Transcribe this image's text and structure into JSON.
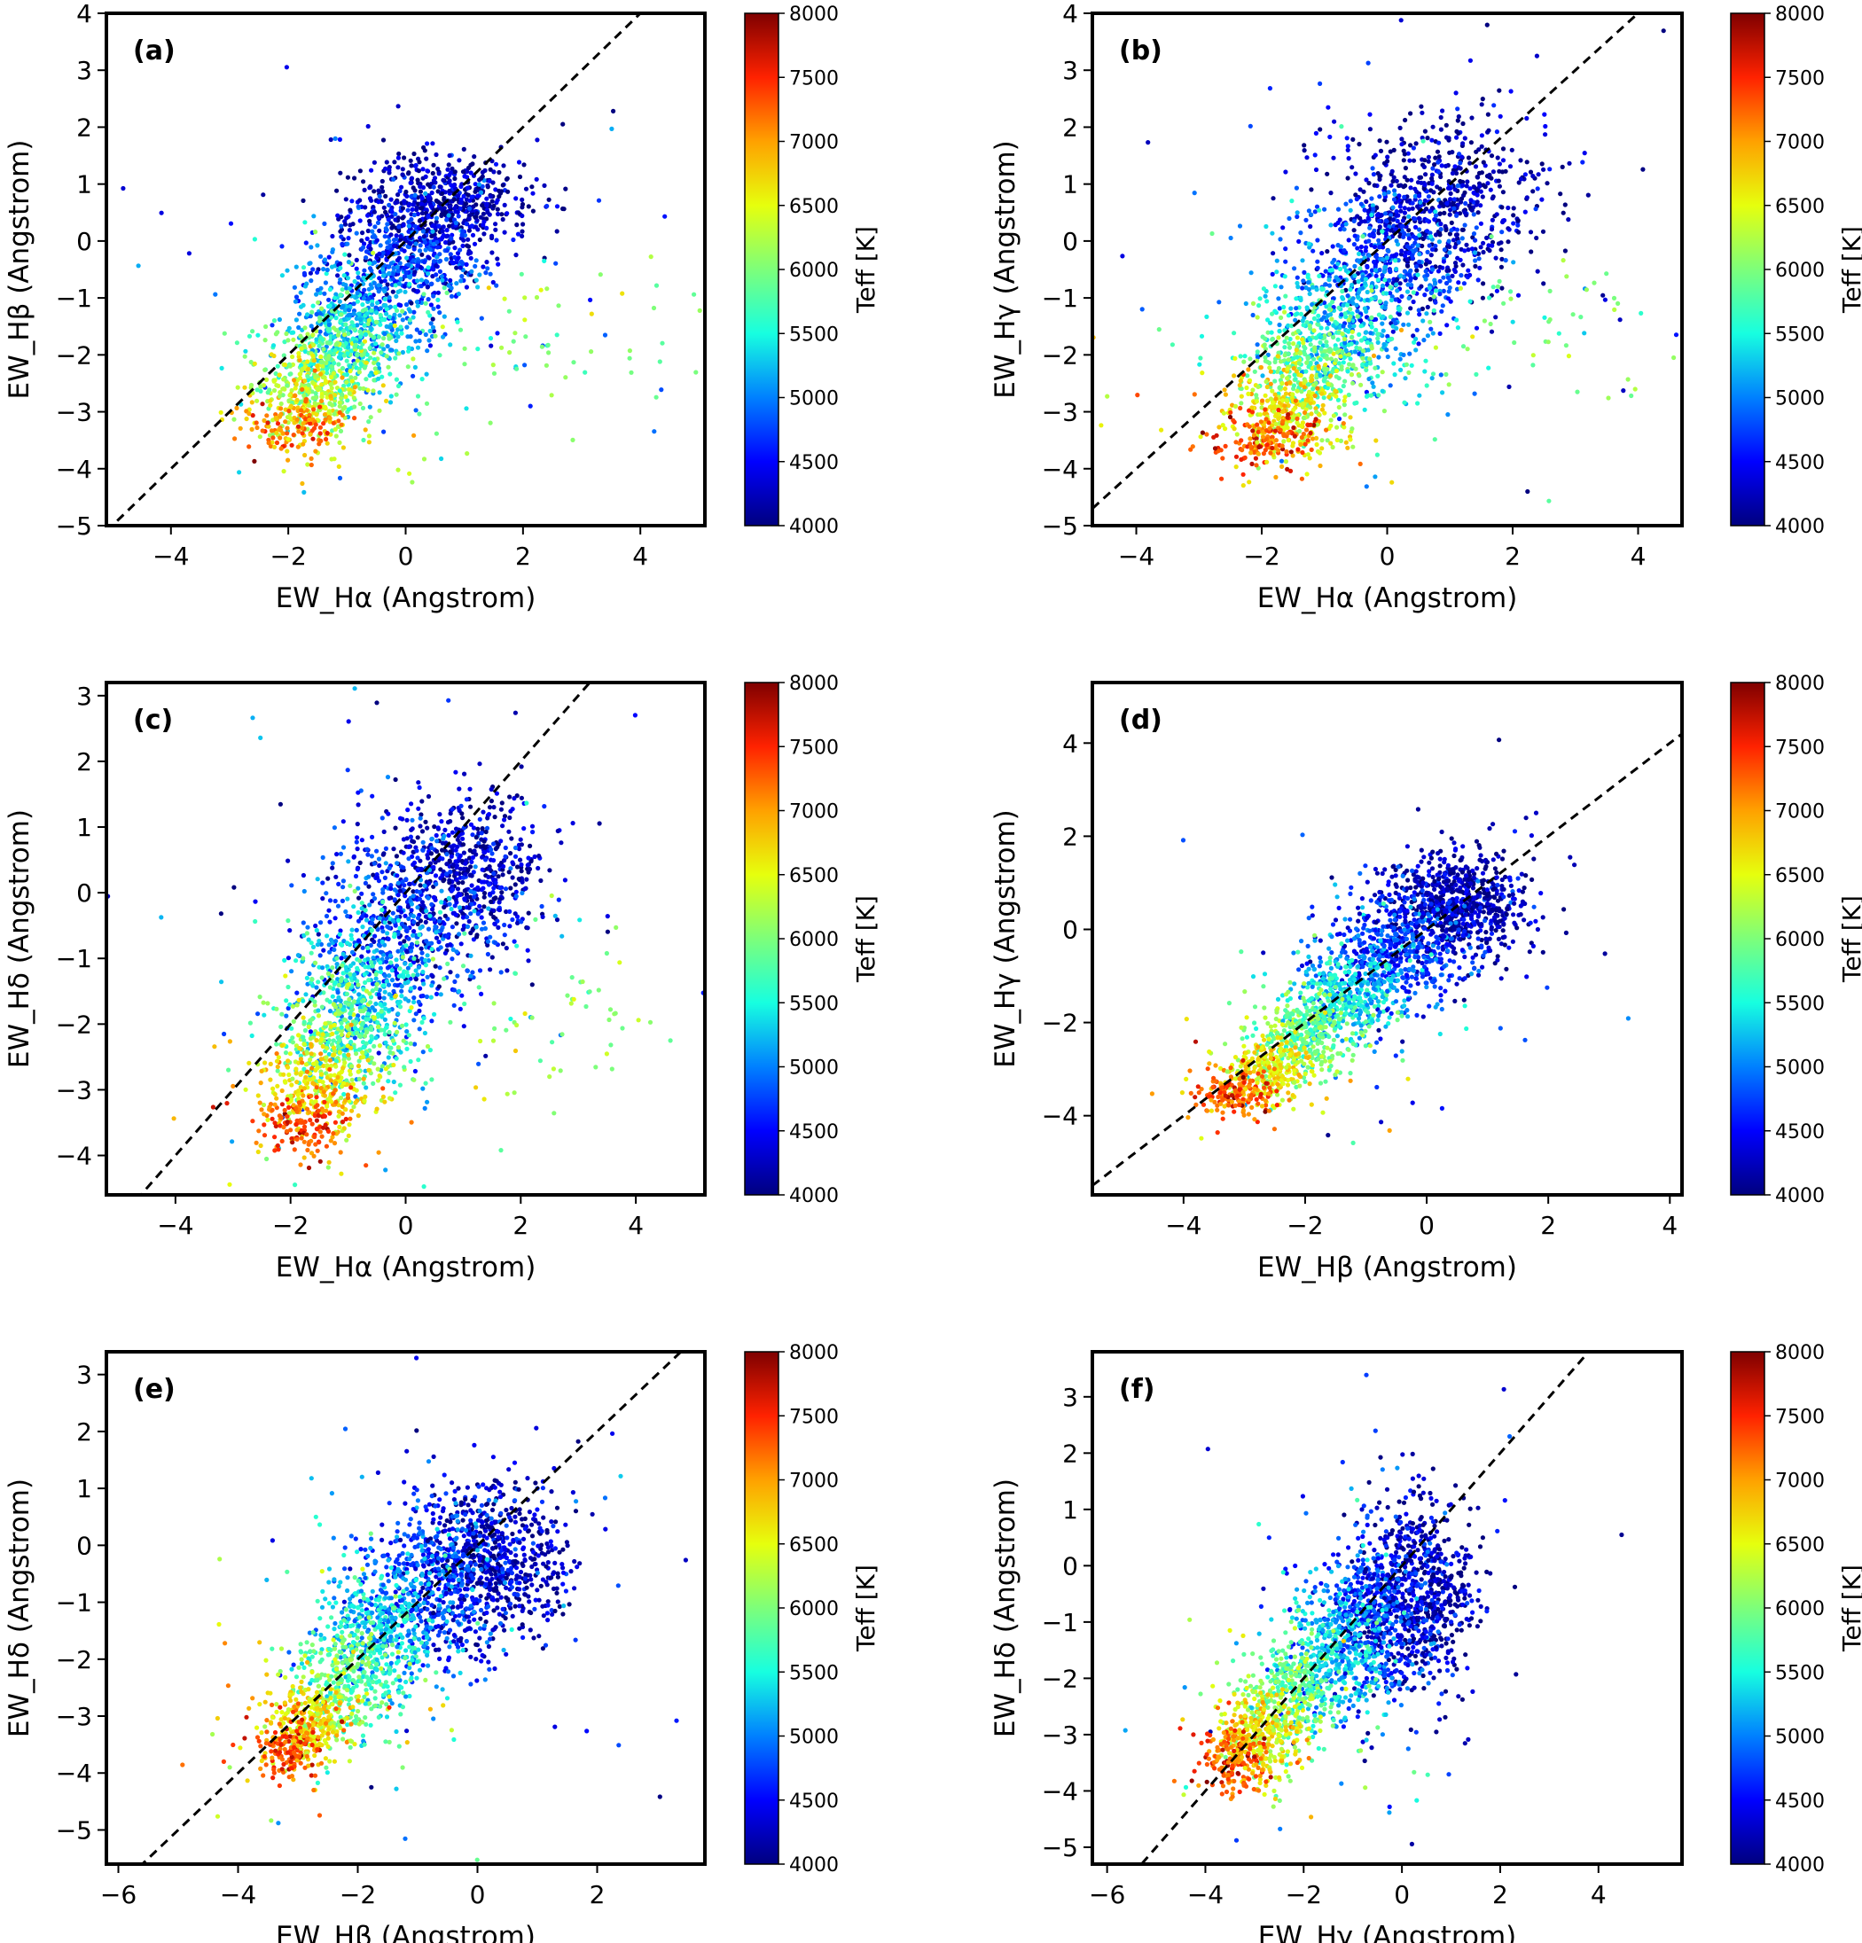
{
  "figure": {
    "colormap": [
      "#00007f",
      "#0000ff",
      "#0080ff",
      "#17ffe0",
      "#7dff7a",
      "#e6ff0d",
      "#ffa100",
      "#ff2200",
      "#7f0000"
    ],
    "colorbar": {
      "label": "Teff [K]",
      "range": [
        4000,
        8000
      ],
      "ticks": [
        "4000",
        "4500",
        "5000",
        "5500",
        "6000",
        "6500",
        "7000",
        "7500",
        "8000"
      ]
    }
  },
  "chart_data": [
    {
      "type": "scatter",
      "panel": "(a)",
      "xlabel": "EW_Hα (Angstrom)",
      "ylabel": "EW_Hβ (Angstrom)",
      "xlim": [
        -5.1,
        5.1
      ],
      "ylim": [
        -5,
        4
      ],
      "xticks": [
        "−4",
        "−2",
        "0",
        "2",
        "4"
      ],
      "xtick_values": [
        -4,
        -2,
        0,
        2,
        4
      ],
      "yticks": [
        "−5",
        "−4",
        "−3",
        "−2",
        "−1",
        "0",
        "1",
        "2",
        "3",
        "4"
      ],
      "ytick_values": [
        -5,
        -4,
        -3,
        -2,
        -1,
        0,
        1,
        2,
        3,
        4
      ],
      "reference_line": "y = x (dashed)",
      "color_by": "Teff [K]",
      "clusters": [
        {
          "teff": 4200,
          "x_center": 0.6,
          "y_center": 0.6,
          "x_spread": 0.75,
          "y_spread": 0.45,
          "n": 650
        },
        {
          "teff": 4700,
          "x_center": 0.0,
          "y_center": -0.4,
          "x_spread": 0.7,
          "y_spread": 0.5,
          "n": 500
        },
        {
          "teff": 5200,
          "x_center": -0.8,
          "y_center": -1.4,
          "x_spread": 0.6,
          "y_spread": 0.5,
          "n": 420
        },
        {
          "teff": 5800,
          "x_center": -1.2,
          "y_center": -2.1,
          "x_spread": 0.55,
          "y_spread": 0.45,
          "n": 350
        },
        {
          "teff": 6400,
          "x_center": -1.6,
          "y_center": -2.7,
          "x_spread": 0.5,
          "y_spread": 0.35,
          "n": 300
        },
        {
          "teff": 7100,
          "x_center": -1.9,
          "y_center": -3.2,
          "x_spread": 0.4,
          "y_spread": 0.25,
          "n": 150
        },
        {
          "teff": 6000,
          "x_center": 2.5,
          "y_center": -1.6,
          "x_spread": 1.2,
          "y_spread": 0.6,
          "n": 60
        }
      ]
    },
    {
      "type": "scatter",
      "panel": "(b)",
      "xlabel": "EW_Hα (Angstrom)",
      "ylabel": "EW_Hγ (Angstrom)",
      "xlim": [
        -4.7,
        4.7
      ],
      "ylim": [
        -5,
        4
      ],
      "xticks": [
        "−4",
        "−2",
        "0",
        "2",
        "4"
      ],
      "xtick_values": [
        -4,
        -2,
        0,
        2,
        4
      ],
      "yticks": [
        "−5",
        "−4",
        "−3",
        "−2",
        "−1",
        "0",
        "1",
        "2",
        "3",
        "4"
      ],
      "ytick_values": [
        -5,
        -4,
        -3,
        -2,
        -1,
        0,
        1,
        2,
        3,
        4
      ],
      "reference_line": "y = x (dashed)",
      "color_by": "Teff [K]",
      "clusters": [
        {
          "teff": 4200,
          "x_center": 0.9,
          "y_center": 0.7,
          "x_spread": 0.8,
          "y_spread": 0.7,
          "n": 600
        },
        {
          "teff": 4700,
          "x_center": 0.1,
          "y_center": -0.3,
          "x_spread": 0.75,
          "y_spread": 0.7,
          "n": 500
        },
        {
          "teff": 5300,
          "x_center": -0.7,
          "y_center": -1.4,
          "x_spread": 0.6,
          "y_spread": 0.6,
          "n": 420
        },
        {
          "teff": 5900,
          "x_center": -1.2,
          "y_center": -2.2,
          "x_spread": 0.55,
          "y_spread": 0.5,
          "n": 350
        },
        {
          "teff": 6600,
          "x_center": -1.6,
          "y_center": -3.0,
          "x_spread": 0.5,
          "y_spread": 0.4,
          "n": 300
        },
        {
          "teff": 7300,
          "x_center": -1.9,
          "y_center": -3.5,
          "x_spread": 0.4,
          "y_spread": 0.25,
          "n": 160
        },
        {
          "teff": 6000,
          "x_center": 2.4,
          "y_center": -1.5,
          "x_spread": 1.2,
          "y_spread": 0.7,
          "n": 60
        }
      ]
    },
    {
      "type": "scatter",
      "panel": "(c)",
      "xlabel": "EW_Hα (Angstrom)",
      "ylabel": "EW_Hδ (Angstrom)",
      "xlim": [
        -5.2,
        5.2
      ],
      "ylim": [
        -4.6,
        3.2
      ],
      "xticks": [
        "−4",
        "−2",
        "0",
        "2",
        "4"
      ],
      "xtick_values": [
        -4,
        -2,
        0,
        2,
        4
      ],
      "yticks": [
        "−4",
        "−3",
        "−2",
        "−1",
        "0",
        "1",
        "2",
        "3"
      ],
      "ytick_values": [
        -4,
        -3,
        -2,
        -1,
        0,
        1,
        2,
        3
      ],
      "reference_line": "y = x (dashed)",
      "color_by": "Teff [K]",
      "clusters": [
        {
          "teff": 4200,
          "x_center": 0.9,
          "y_center": 0.3,
          "x_spread": 0.75,
          "y_spread": 0.6,
          "n": 600
        },
        {
          "teff": 4700,
          "x_center": 0.0,
          "y_center": -0.5,
          "x_spread": 0.8,
          "y_spread": 0.7,
          "n": 500
        },
        {
          "teff": 5300,
          "x_center": -0.7,
          "y_center": -1.5,
          "x_spread": 0.6,
          "y_spread": 0.6,
          "n": 420
        },
        {
          "teff": 5900,
          "x_center": -1.1,
          "y_center": -2.2,
          "x_spread": 0.55,
          "y_spread": 0.5,
          "n": 350
        },
        {
          "teff": 6600,
          "x_center": -1.5,
          "y_center": -2.9,
          "x_spread": 0.5,
          "y_spread": 0.4,
          "n": 300
        },
        {
          "teff": 7300,
          "x_center": -1.8,
          "y_center": -3.5,
          "x_spread": 0.4,
          "y_spread": 0.25,
          "n": 150
        },
        {
          "teff": 6000,
          "x_center": 2.6,
          "y_center": -1.8,
          "x_spread": 1.2,
          "y_spread": 0.7,
          "n": 60
        }
      ]
    },
    {
      "type": "scatter",
      "panel": "(d)",
      "xlabel": "EW_Hβ (Angstrom)",
      "ylabel": "EW_Hγ (Angstrom)",
      "xlim": [
        -5.5,
        4.2
      ],
      "ylim": [
        -5.7,
        5.3
      ],
      "xticks": [
        "−4",
        "−2",
        "0",
        "2",
        "4"
      ],
      "xtick_values": [
        -4,
        -2,
        0,
        2,
        4
      ],
      "yticks": [
        "−4",
        "−2",
        "0",
        "2",
        "4"
      ],
      "ytick_values": [
        -4,
        -2,
        0,
        2,
        4
      ],
      "reference_line": "y = x (dashed)",
      "color_by": "Teff [K]",
      "clusters": [
        {
          "teff": 4200,
          "x_center": 0.5,
          "y_center": 0.6,
          "x_spread": 0.55,
          "y_spread": 0.55,
          "n": 700
        },
        {
          "teff": 4700,
          "x_center": -0.5,
          "y_center": -0.4,
          "x_spread": 0.55,
          "y_spread": 0.55,
          "n": 550
        },
        {
          "teff": 5300,
          "x_center": -1.3,
          "y_center": -1.4,
          "x_spread": 0.45,
          "y_spread": 0.5,
          "n": 420
        },
        {
          "teff": 5900,
          "x_center": -2.0,
          "y_center": -2.2,
          "x_spread": 0.4,
          "y_spread": 0.45,
          "n": 340
        },
        {
          "teff": 6600,
          "x_center": -2.6,
          "y_center": -3.0,
          "x_spread": 0.35,
          "y_spread": 0.35,
          "n": 280
        },
        {
          "teff": 7300,
          "x_center": -3.1,
          "y_center": -3.5,
          "x_spread": 0.3,
          "y_spread": 0.25,
          "n": 160
        }
      ]
    },
    {
      "type": "scatter",
      "panel": "(e)",
      "xlabel": "EW_Hβ (Angstrom)",
      "ylabel": "EW_Hδ (Angstrom)",
      "xlim": [
        -6.2,
        3.8
      ],
      "ylim": [
        -5.6,
        3.4
      ],
      "xticks": [
        "−6",
        "−4",
        "−2",
        "0",
        "2"
      ],
      "xtick_values": [
        -6,
        -4,
        -2,
        0,
        2
      ],
      "yticks": [
        "−5",
        "−4",
        "−3",
        "−2",
        "−1",
        "0",
        "1",
        "2",
        "3"
      ],
      "ytick_values": [
        -5,
        -4,
        -3,
        -2,
        -1,
        0,
        1,
        2,
        3
      ],
      "reference_line": "y = x (dashed)",
      "color_by": "Teff [K]",
      "clusters": [
        {
          "teff": 4200,
          "x_center": 0.3,
          "y_center": -0.3,
          "x_spread": 0.6,
          "y_spread": 0.7,
          "n": 650
        },
        {
          "teff": 4700,
          "x_center": -0.7,
          "y_center": -0.7,
          "x_spread": 0.6,
          "y_spread": 0.7,
          "n": 520
        },
        {
          "teff": 5300,
          "x_center": -1.6,
          "y_center": -1.5,
          "x_spread": 0.5,
          "y_spread": 0.6,
          "n": 420
        },
        {
          "teff": 5900,
          "x_center": -2.2,
          "y_center": -2.3,
          "x_spread": 0.45,
          "y_spread": 0.5,
          "n": 350
        },
        {
          "teff": 6600,
          "x_center": -2.8,
          "y_center": -3.1,
          "x_spread": 0.4,
          "y_spread": 0.4,
          "n": 300
        },
        {
          "teff": 7300,
          "x_center": -3.2,
          "y_center": -3.6,
          "x_spread": 0.3,
          "y_spread": 0.25,
          "n": 160
        }
      ]
    },
    {
      "type": "scatter",
      "panel": "(f)",
      "xlabel": "EW_Hγ (Angstrom)",
      "ylabel": "EW_Hδ (Angstrom)",
      "xlim": [
        -6.3,
        5.7
      ],
      "ylim": [
        -5.3,
        3.8
      ],
      "xticks": [
        "−6",
        "−4",
        "−2",
        "0",
        "2",
        "4"
      ],
      "xtick_values": [
        -6,
        -4,
        -2,
        0,
        2,
        4
      ],
      "yticks": [
        "−5",
        "−4",
        "−3",
        "−2",
        "−1",
        "0",
        "1",
        "2",
        "3"
      ],
      "ytick_values": [
        -5,
        -4,
        -3,
        -2,
        -1,
        0,
        1,
        2,
        3
      ],
      "reference_line": "y = x (dashed)",
      "color_by": "Teff [K]",
      "clusters": [
        {
          "teff": 4200,
          "x_center": 0.4,
          "y_center": -0.5,
          "x_spread": 0.6,
          "y_spread": 0.8,
          "n": 650
        },
        {
          "teff": 4700,
          "x_center": -0.5,
          "y_center": -0.8,
          "x_spread": 0.6,
          "y_spread": 0.8,
          "n": 520
        },
        {
          "teff": 5300,
          "x_center": -1.4,
          "y_center": -1.6,
          "x_spread": 0.5,
          "y_spread": 0.6,
          "n": 420
        },
        {
          "teff": 5900,
          "x_center": -2.2,
          "y_center": -2.3,
          "x_spread": 0.45,
          "y_spread": 0.5,
          "n": 350
        },
        {
          "teff": 6600,
          "x_center": -2.9,
          "y_center": -3.0,
          "x_spread": 0.4,
          "y_spread": 0.4,
          "n": 300
        },
        {
          "teff": 7300,
          "x_center": -3.4,
          "y_center": -3.5,
          "x_spread": 0.3,
          "y_spread": 0.3,
          "n": 160
        }
      ]
    }
  ]
}
